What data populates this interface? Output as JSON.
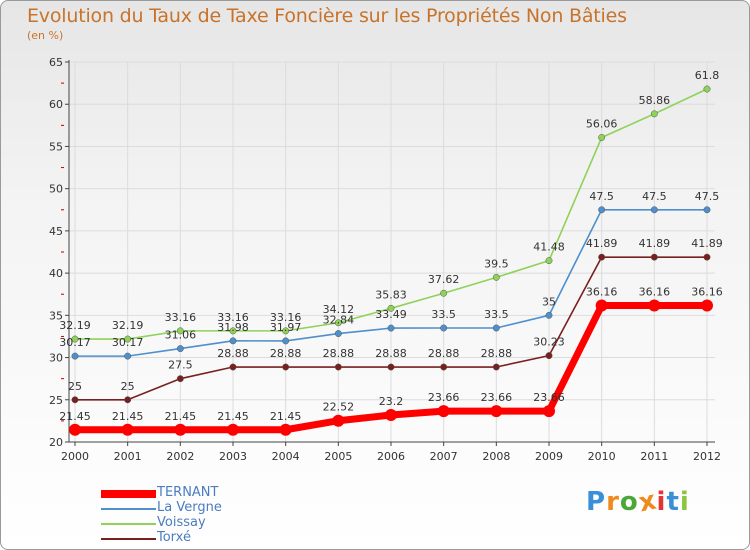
{
  "title": "Evolution du Taux de Taxe Foncière sur les Propriétés Non Bâties",
  "unit_label": "(en %)",
  "brand": "Proxiti",
  "colors": {
    "title": "#c8732b",
    "legend_text": "#4a7cc2",
    "grid": "#dcdcdc",
    "axis": "#444444",
    "tick_red": "#c00000",
    "logo": [
      "#3a8fd9",
      "#f08a1f",
      "#4aa83a",
      "#f08a1f",
      "#e33333",
      "#3a8fd9",
      "#8cc63f"
    ]
  },
  "chart_data": {
    "type": "line",
    "title": "Evolution du Taux de Taxe Foncière sur les Propriétés Non Bâties",
    "ylabel": "(en %)",
    "xlabel": "",
    "ylim": [
      20,
      65
    ],
    "yticks": [
      20,
      25,
      30,
      35,
      40,
      45,
      50,
      55,
      60,
      65
    ],
    "grid": true,
    "legend_position": "bottom-left",
    "x": [
      "2000",
      "2001",
      "2002",
      "2003",
      "2004",
      "2005",
      "2006",
      "2007",
      "2008",
      "2009",
      "2010",
      "2011",
      "2012"
    ],
    "series": [
      {
        "name": "Voissay",
        "color": "#8ed259",
        "values": [
          32.19,
          32.19,
          33.16,
          33.16,
          33.16,
          34.12,
          35.83,
          37.62,
          39.5,
          41.48,
          56.06,
          58.86,
          61.8
        ],
        "labels": [
          "32.19",
          "32.19",
          "33.16",
          "33.16",
          "33.16",
          "34.12",
          "35.83",
          "37.62",
          "39.5",
          "41.48",
          "56.06",
          "58.86",
          "61.8"
        ]
      },
      {
        "name": "La Vergne",
        "color": "#4f8fcb",
        "values": [
          30.17,
          30.17,
          31.06,
          31.98,
          31.97,
          32.84,
          33.49,
          33.5,
          33.5,
          35,
          47.5,
          47.5,
          47.5
        ],
        "labels": [
          "30.17",
          "30.17",
          "31.06",
          "31.98",
          "31.97",
          "32.84",
          "33.49",
          "33.5",
          "33.5",
          "35",
          "47.5",
          "47.5",
          "47.5"
        ]
      },
      {
        "name": "Torxé",
        "color": "#7a1f1f",
        "values": [
          25,
          25,
          27.5,
          28.88,
          28.88,
          28.88,
          28.88,
          28.88,
          28.88,
          30.23,
          41.89,
          41.89,
          41.89
        ],
        "labels": [
          "25",
          "25",
          "27.5",
          "28.88",
          "28.88",
          "28.88",
          "28.88",
          "28.88",
          "28.88",
          "30.23",
          "41.89",
          "41.89",
          "41.89"
        ]
      },
      {
        "name": "TERNANT",
        "color": "#ff0000",
        "values": [
          21.45,
          21.45,
          21.45,
          21.45,
          21.45,
          22.52,
          23.2,
          23.66,
          23.66,
          23.66,
          36.16,
          36.16,
          36.16
        ],
        "labels": [
          "21.45",
          "21.45",
          "21.45",
          "21.45",
          "21.45",
          "22.52",
          "23.2",
          "23.66",
          "23.66",
          "23.66",
          "36.16",
          "36.16",
          "36.16"
        ]
      }
    ]
  },
  "legend": [
    {
      "name": "TERNANT",
      "color": "#ff0000"
    },
    {
      "name": "La Vergne",
      "color": "#4f8fcb"
    },
    {
      "name": "Voissay",
      "color": "#8ed259"
    },
    {
      "name": "Torxé",
      "color": "#7a1f1f"
    }
  ]
}
